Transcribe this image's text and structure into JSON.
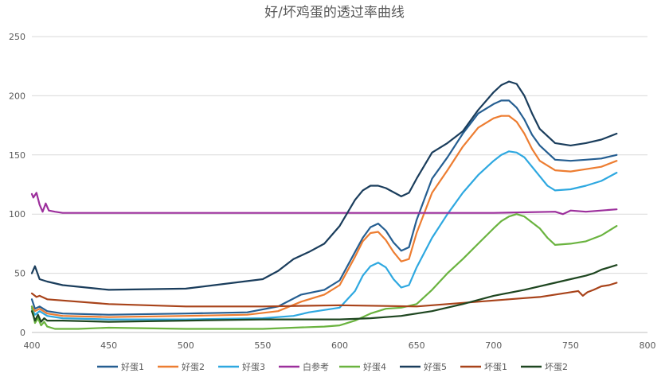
{
  "chart_data": {
    "type": "line",
    "title": "好/坏鸡蛋的透过率曲线",
    "xlim": [
      400,
      800
    ],
    "ylim": [
      0,
      250
    ],
    "x_ticks": [
      400,
      450,
      500,
      550,
      600,
      650,
      700,
      750,
      800
    ],
    "y_ticks": [
      0,
      50,
      100,
      150,
      200,
      250
    ],
    "grid": "horizontal",
    "legend_position": "bottom",
    "series": [
      {
        "name": "好蛋1",
        "color": "#255e91",
        "x": [
          400,
          402,
          405,
          410,
          420,
          450,
          500,
          540,
          560,
          575,
          590,
          600,
          610,
          615,
          620,
          625,
          630,
          635,
          640,
          645,
          650,
          660,
          670,
          680,
          690,
          700,
          705,
          710,
          715,
          720,
          725,
          730,
          740,
          750,
          760,
          770,
          780
        ],
        "y": [
          28,
          20,
          22,
          18,
          16,
          15,
          16,
          17,
          22,
          32,
          36,
          44,
          68,
          80,
          89,
          92,
          86,
          76,
          69,
          72,
          95,
          130,
          148,
          168,
          185,
          193,
          196,
          196,
          190,
          180,
          167,
          158,
          146,
          145,
          146,
          147,
          150
        ]
      },
      {
        "name": "好蛋2",
        "color": "#ed7d31",
        "x": [
          400,
          402,
          405,
          410,
          420,
          450,
          500,
          540,
          560,
          575,
          590,
          600,
          610,
          615,
          620,
          625,
          630,
          635,
          640,
          645,
          650,
          660,
          670,
          680,
          690,
          700,
          705,
          710,
          715,
          720,
          725,
          730,
          740,
          750,
          760,
          770,
          780
        ],
        "y": [
          22,
          18,
          20,
          16,
          14,
          13,
          14,
          15,
          18,
          26,
          32,
          40,
          64,
          77,
          84,
          85,
          78,
          68,
          60,
          62,
          84,
          118,
          137,
          157,
          173,
          181,
          183,
          183,
          178,
          168,
          155,
          145,
          137,
          136,
          138,
          140,
          145
        ]
      },
      {
        "name": "好蛋3",
        "color": "#2ea8e0",
        "x": [
          400,
          402,
          405,
          410,
          420,
          450,
          500,
          550,
          570,
          580,
          600,
          610,
          615,
          620,
          625,
          630,
          635,
          640,
          645,
          650,
          660,
          670,
          680,
          690,
          700,
          705,
          710,
          715,
          720,
          730,
          735,
          740,
          750,
          760,
          770,
          780
        ],
        "y": [
          20,
          15,
          18,
          14,
          12,
          11,
          11,
          12,
          14,
          17,
          21,
          35,
          48,
          56,
          59,
          55,
          45,
          38,
          40,
          55,
          80,
          100,
          118,
          133,
          145,
          150,
          153,
          152,
          148,
          132,
          124,
          120,
          121,
          124,
          128,
          135
        ]
      },
      {
        "name": "白参考",
        "color": "#9c2f9c",
        "x": [
          400,
          401,
          403,
          405,
          407,
          409,
          411,
          415,
          420,
          450,
          500,
          550,
          600,
          650,
          700,
          740,
          745,
          750,
          760,
          770,
          780
        ],
        "y": [
          117,
          114,
          118,
          108,
          102,
          109,
          103,
          102,
          101,
          101,
          101,
          101,
          101,
          101,
          101,
          102,
          100,
          103,
          102,
          103,
          104
        ]
      },
      {
        "name": "好蛋4",
        "color": "#6ab33f",
        "x": [
          400,
          402,
          404,
          406,
          408,
          410,
          415,
          420,
          430,
          450,
          500,
          550,
          570,
          590,
          600,
          610,
          620,
          630,
          640,
          650,
          660,
          670,
          680,
          690,
          700,
          705,
          710,
          715,
          720,
          730,
          735,
          740,
          750,
          760,
          770,
          780
        ],
        "y": [
          22,
          8,
          12,
          6,
          9,
          5,
          3,
          3,
          3,
          4,
          3,
          3,
          4,
          5,
          6,
          10,
          16,
          20,
          21,
          24,
          36,
          50,
          62,
          75,
          88,
          94,
          98,
          100,
          98,
          88,
          80,
          74,
          75,
          77,
          82,
          90
        ]
      },
      {
        "name": "好蛋5",
        "color": "#1a3d5c",
        "x": [
          400,
          402,
          405,
          410,
          420,
          450,
          500,
          550,
          560,
          570,
          580,
          590,
          600,
          610,
          615,
          620,
          625,
          630,
          640,
          645,
          650,
          660,
          670,
          680,
          690,
          700,
          705,
          710,
          715,
          720,
          725,
          730,
          740,
          750,
          760,
          770,
          780
        ],
        "y": [
          50,
          56,
          45,
          43,
          40,
          36,
          37,
          45,
          52,
          62,
          68,
          75,
          90,
          112,
          120,
          124,
          124,
          122,
          115,
          118,
          130,
          152,
          160,
          170,
          188,
          203,
          209,
          212,
          210,
          200,
          185,
          172,
          160,
          158,
          160,
          163,
          168
        ]
      },
      {
        "name": "坏蛋1",
        "color": "#a8431a",
        "x": [
          400,
          403,
          405,
          410,
          420,
          450,
          500,
          550,
          600,
          650,
          670,
          690,
          700,
          710,
          720,
          730,
          740,
          750,
          755,
          758,
          761,
          765,
          770,
          775,
          780
        ],
        "y": [
          33,
          30,
          31,
          28,
          27,
          24,
          22,
          22,
          23,
          22,
          24,
          26,
          27,
          28,
          29,
          30,
          32,
          34,
          35,
          31,
          34,
          36,
          39,
          40,
          42
        ]
      },
      {
        "name": "坏蛋2",
        "color": "#1e4620",
        "x": [
          400,
          402,
          404,
          406,
          408,
          410,
          420,
          450,
          500,
          550,
          600,
          620,
          640,
          660,
          680,
          700,
          720,
          740,
          750,
          760,
          765,
          770,
          775,
          780
        ],
        "y": [
          18,
          10,
          15,
          9,
          12,
          10,
          10,
          9,
          10,
          11,
          11,
          12,
          14,
          18,
          24,
          31,
          36,
          42,
          45,
          48,
          50,
          53,
          55,
          57
        ]
      }
    ]
  }
}
